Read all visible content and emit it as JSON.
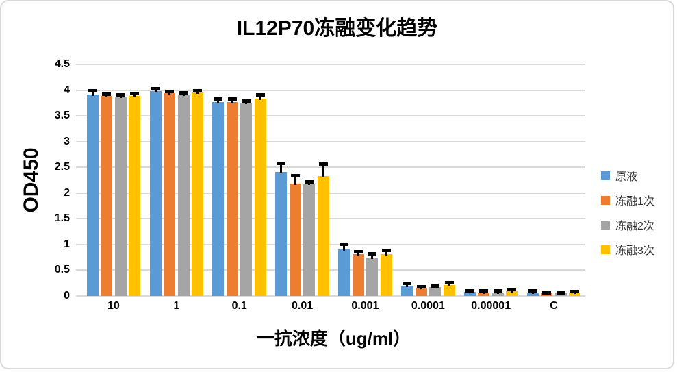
{
  "chart_data": {
    "type": "bar",
    "title": "IL12P70冻融变化趋势",
    "xlabel": "一抗浓度（ug/ml）",
    "ylabel": "OD450",
    "categories": [
      "10",
      "1",
      "0.1",
      "0.01",
      "0.001",
      "0.0001",
      "0.00001",
      "C"
    ],
    "series": [
      {
        "name": "原液",
        "color": "#5B9BD5",
        "values": [
          3.92,
          3.98,
          3.77,
          2.41,
          0.91,
          0.2,
          0.08,
          0.07
        ],
        "errors": [
          0.07,
          0.05,
          0.06,
          0.17,
          0.1,
          0.05,
          0.03,
          0.04
        ]
      },
      {
        "name": "冻融1次",
        "color": "#ED7D31",
        "values": [
          3.89,
          3.94,
          3.77,
          2.19,
          0.81,
          0.16,
          0.07,
          0.05
        ],
        "errors": [
          0.04,
          0.04,
          0.06,
          0.15,
          0.05,
          0.03,
          0.03,
          0.02
        ]
      },
      {
        "name": "冻融2次",
        "color": "#A5A5A5",
        "values": [
          3.88,
          3.92,
          3.75,
          2.18,
          0.74,
          0.17,
          0.07,
          0.05
        ],
        "errors": [
          0.04,
          0.04,
          0.05,
          0.05,
          0.09,
          0.03,
          0.03,
          0.02
        ]
      },
      {
        "name": "冻融3次",
        "color": "#FFC000",
        "values": [
          3.89,
          3.96,
          3.84,
          2.33,
          0.81,
          0.21,
          0.09,
          0.06
        ],
        "errors": [
          0.05,
          0.04,
          0.08,
          0.24,
          0.08,
          0.06,
          0.04,
          0.03
        ]
      }
    ],
    "ylim": [
      0,
      4.5
    ],
    "ytick_step": 0.5,
    "yticks": [
      "0",
      "0.5",
      "1",
      "1.5",
      "2",
      "2.5",
      "3",
      "3.5",
      "4",
      "4.5"
    ],
    "grid": true,
    "legend_position": "right",
    "error_bars": "plus",
    "colors": {
      "gridline": "#D9D9D9",
      "error_bar": "#000000",
      "text": "#000000",
      "frame_border": "#D8D8D8"
    }
  }
}
